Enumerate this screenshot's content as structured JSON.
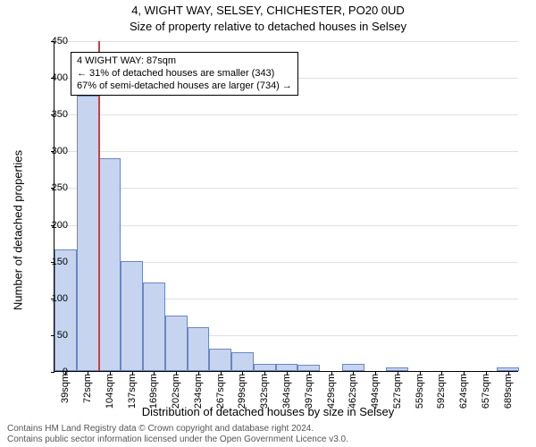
{
  "header": {
    "line1": "4, WIGHT WAY, SELSEY, CHICHESTER, PO20 0UD",
    "line2": "Size of property relative to detached houses in Selsey"
  },
  "axes": {
    "ylabel": "Number of detached properties",
    "xlabel": "Distribution of detached houses by size in Selsey",
    "ylim_min": 0,
    "ylim_max": 450,
    "ytick_step": 50,
    "grid_color": "#e0e0e0",
    "axis_color": "#000000"
  },
  "chart": {
    "type": "histogram",
    "bar_fill": "#c6d4ef",
    "bar_stroke": "#6a86c4",
    "background": "#ffffff",
    "categories": [
      "39sqm",
      "72sqm",
      "104sqm",
      "137sqm",
      "169sqm",
      "202sqm",
      "234sqm",
      "267sqm",
      "299sqm",
      "332sqm",
      "364sqm",
      "397sqm",
      "429sqm",
      "462sqm",
      "494sqm",
      "527sqm",
      "559sqm",
      "592sqm",
      "624sqm",
      "657sqm",
      "689sqm"
    ],
    "values": [
      165,
      375,
      290,
      150,
      120,
      75,
      60,
      30,
      25,
      10,
      10,
      8,
      0,
      10,
      0,
      5,
      0,
      0,
      0,
      0,
      5
    ],
    "bar_width_ratio": 1.0
  },
  "reference": {
    "color": "#d83a3a",
    "position_sqm": 87,
    "line1": "4 WIGHT WAY: 87sqm",
    "line2": "← 31% of detached houses are smaller (343)",
    "line3": "67% of semi-detached houses are larger (734) →"
  },
  "footer": {
    "line1": "Contains HM Land Registry data © Crown copyright and database right 2024.",
    "line2": "Contains public sector information licensed under the Open Government Licence v3.0."
  },
  "typography": {
    "title_fontsize": 13,
    "label_fontsize": 13,
    "tick_fontsize": 11,
    "annot_fontsize": 11,
    "footer_fontsize": 10
  }
}
